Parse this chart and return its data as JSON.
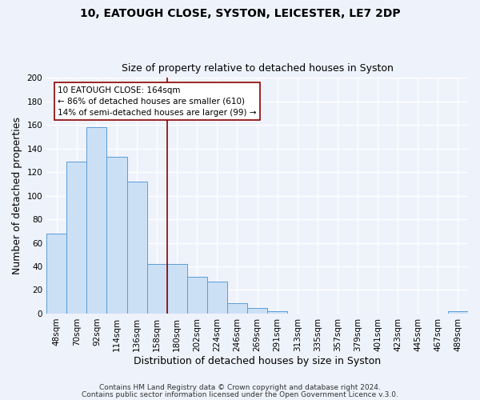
{
  "title": "10, EATOUGH CLOSE, SYSTON, LEICESTER, LE7 2DP",
  "subtitle": "Size of property relative to detached houses in Syston",
  "xlabel": "Distribution of detached houses by size in Syston",
  "ylabel": "Number of detached properties",
  "bar_labels": [
    "48sqm",
    "70sqm",
    "92sqm",
    "114sqm",
    "136sqm",
    "158sqm",
    "180sqm",
    "202sqm",
    "224sqm",
    "246sqm",
    "269sqm",
    "291sqm",
    "313sqm",
    "335sqm",
    "357sqm",
    "379sqm",
    "401sqm",
    "423sqm",
    "445sqm",
    "467sqm",
    "489sqm"
  ],
  "bar_values": [
    68,
    129,
    158,
    133,
    112,
    42,
    42,
    31,
    27,
    9,
    5,
    2,
    0,
    0,
    0,
    0,
    0,
    0,
    0,
    0,
    2
  ],
  "bar_color": "#cce0f5",
  "bar_edgecolor": "#5b9bd5",
  "vline_x": 5.5,
  "vline_color": "#8b0000",
  "annotation_line1": "10 EATOUGH CLOSE: 164sqm",
  "annotation_line2": "← 86% of detached houses are smaller (610)",
  "annotation_line3": "14% of semi-detached houses are larger (99) →",
  "annotation_box_color": "#ffffff",
  "annotation_box_edgecolor": "#8b0000",
  "ylim": [
    0,
    200
  ],
  "yticks": [
    0,
    20,
    40,
    60,
    80,
    100,
    120,
    140,
    160,
    180,
    200
  ],
  "footer1": "Contains HM Land Registry data © Crown copyright and database right 2024.",
  "footer2": "Contains public sector information licensed under the Open Government Licence v.3.0.",
  "background_color": "#eef2fb",
  "grid_color": "#ffffff",
  "title_fontsize": 10,
  "subtitle_fontsize": 9,
  "axis_label_fontsize": 9,
  "tick_fontsize": 7.5,
  "annotation_fontsize": 7.5,
  "footer_fontsize": 6.5
}
